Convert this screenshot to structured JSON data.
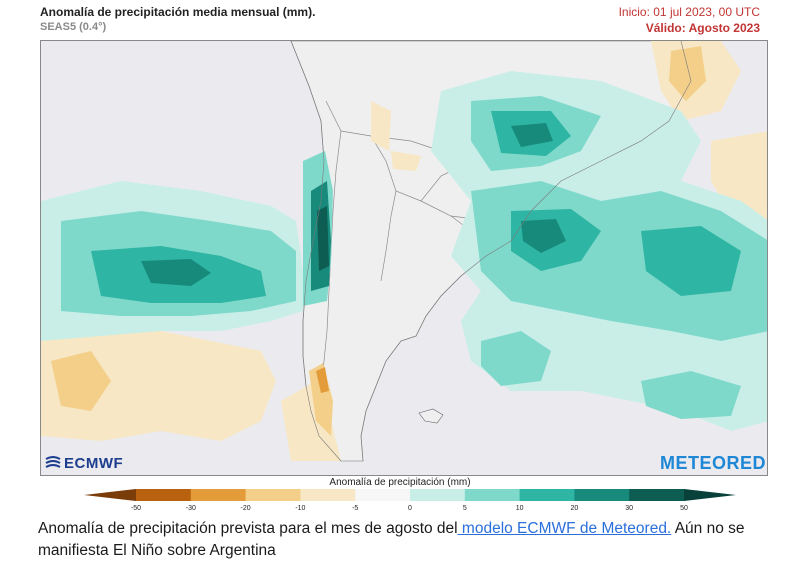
{
  "header": {
    "title": "Anomalía de precipitación media mensual (mm).",
    "subtitle": "SEAS5 (0.4°)",
    "init": "Inicio: 01 jul 2023, 00 UTC",
    "valid": "Válido: Agosto 2023"
  },
  "logos": {
    "ecmwf": "ECMWF",
    "meteored": "METEORED"
  },
  "colorbar": {
    "title": "Anomalía de precipitación (mm)",
    "ticks": [
      "-50",
      "-30",
      "-20",
      "-10",
      "-5",
      "0",
      "5",
      "10",
      "20",
      "30",
      "50"
    ],
    "colors": [
      "#7a3d0a",
      "#b8620f",
      "#e49b3a",
      "#f3cf8a",
      "#f7e7c4",
      "#f7f7f7",
      "#c9eee8",
      "#7ed9cb",
      "#2fb5a3",
      "#178a7c",
      "#0e5d53",
      "#08413a"
    ]
  },
  "caption": {
    "before": "Anomalía de precipitación prevista para el mes de agosto del",
    "link": " modelo ECMWF de Meteored.",
    "after": " Aún no se manifiesta El Niño sobre Argentina"
  },
  "map_colors": {
    "background": "#ebebef",
    "land": "#efefef",
    "border": "#8c8c8c",
    "wet_light": "#c9eee8",
    "wet_mid": "#7ed9cb",
    "wet": "#2fb5a3",
    "wet_dark": "#178a7c",
    "wet_darkest": "#0e5d53",
    "dry_light": "#f7e7c4",
    "dry_mid": "#f3cf8a",
    "dry": "#e49b3a",
    "dry_dark": "#b8620f"
  }
}
